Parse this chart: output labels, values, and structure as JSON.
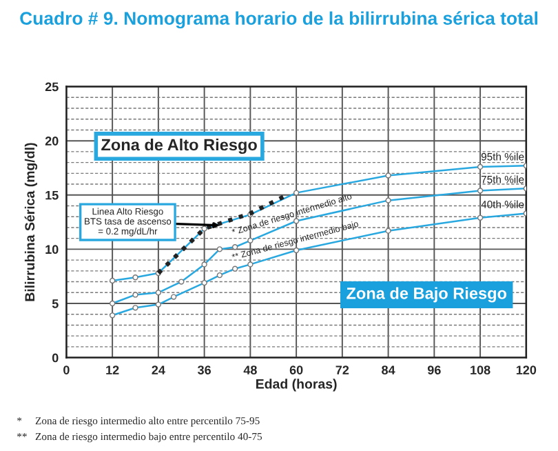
{
  "chart_data": {
    "type": "line",
    "title": "Cuadro # 9. Nomograma horario de la bilirrubina sérica total",
    "xlabel": "Edad (horas)",
    "ylabel": "Bilirrubina Sérica (mg/dl)",
    "xlim": [
      0,
      120
    ],
    "xticks": [
      0,
      12,
      24,
      36,
      48,
      60,
      72,
      84,
      96,
      108,
      120
    ],
    "ylim": [
      0,
      25
    ],
    "yticks": [
      0,
      {
        "value": 1,
        "label": null
      },
      {
        "value": 2,
        "label": null
      },
      {
        "value": 3,
        "label": null
      },
      {
        "value": 4,
        "label": null
      },
      5,
      {
        "value": 6,
        "label": null
      },
      {
        "value": 7,
        "label": null
      },
      {
        "value": 8,
        "label": null
      },
      {
        "value": 9,
        "label": null
      },
      10,
      {
        "value": 11,
        "label": null
      },
      {
        "value": 12,
        "label": null
      },
      {
        "value": 13,
        "label": null
      },
      {
        "value": 14,
        "label": null
      },
      15,
      {
        "value": 16,
        "label": null
      },
      {
        "value": 17,
        "label": null
      },
      {
        "value": 18,
        "label": null
      },
      {
        "value": 19,
        "label": null
      },
      20,
      {
        "value": 21,
        "label": null
      },
      {
        "value": 22,
        "label": null
      },
      {
        "value": 23,
        "label": null
      },
      {
        "value": 24,
        "label": null
      },
      25
    ],
    "grid": true,
    "marker": "circle",
    "line_style": "solid",
    "legend": false,
    "series": [
      {
        "name": "95th %ile",
        "color": "#29a8e0",
        "x": [
          12,
          18,
          24,
          36,
          48,
          60,
          84,
          108,
          120
        ],
        "values": [
          7.1,
          7.4,
          7.8,
          11.9,
          13.2,
          15.2,
          16.8,
          17.6,
          17.7
        ]
      },
      {
        "name": "75th %ile",
        "color": "#29a8e0",
        "x": [
          12,
          18,
          24,
          30,
          36,
          40,
          44,
          48,
          60,
          84,
          108,
          120
        ],
        "values": [
          5.0,
          5.8,
          6.0,
          7.0,
          8.6,
          10.0,
          10.2,
          10.8,
          12.6,
          14.5,
          15.4,
          15.6
        ]
      },
      {
        "name": "40th %ile",
        "color": "#29a8e0",
        "x": [
          12,
          18,
          24,
          28,
          36,
          40,
          44,
          48,
          60,
          84,
          108,
          120
        ],
        "values": [
          3.9,
          4.6,
          4.9,
          5.6,
          6.9,
          7.6,
          8.2,
          8.6,
          9.9,
          11.7,
          12.9,
          13.3
        ]
      },
      {
        "color": "#222222",
        "x": [
          24,
          36,
          48,
          57
        ],
        "values": [
          7.8,
          11.9,
          13.3,
          14.9
        ],
        "line_style": "dotted",
        "marker": "none"
      }
    ],
    "annotations": [
      "Zona de Alto Riesgo",
      {
        "text": "Linea Alto Riesgo\nBTS tasa de ascenso\n= 0.2 mg/dL/hr",
        "x": 40,
        "y": 12.2
      },
      "* Zona de riesgo intermedio alto",
      "** Zona de riesgo intermedio bajo",
      "Zona de Bajo Riesgo",
      "*     Zona de riesgo intermedio alto entre percentilo 75-95",
      "**   Zona de riesgo intermedio bajo entre percentilo 40-75"
    ]
  }
}
